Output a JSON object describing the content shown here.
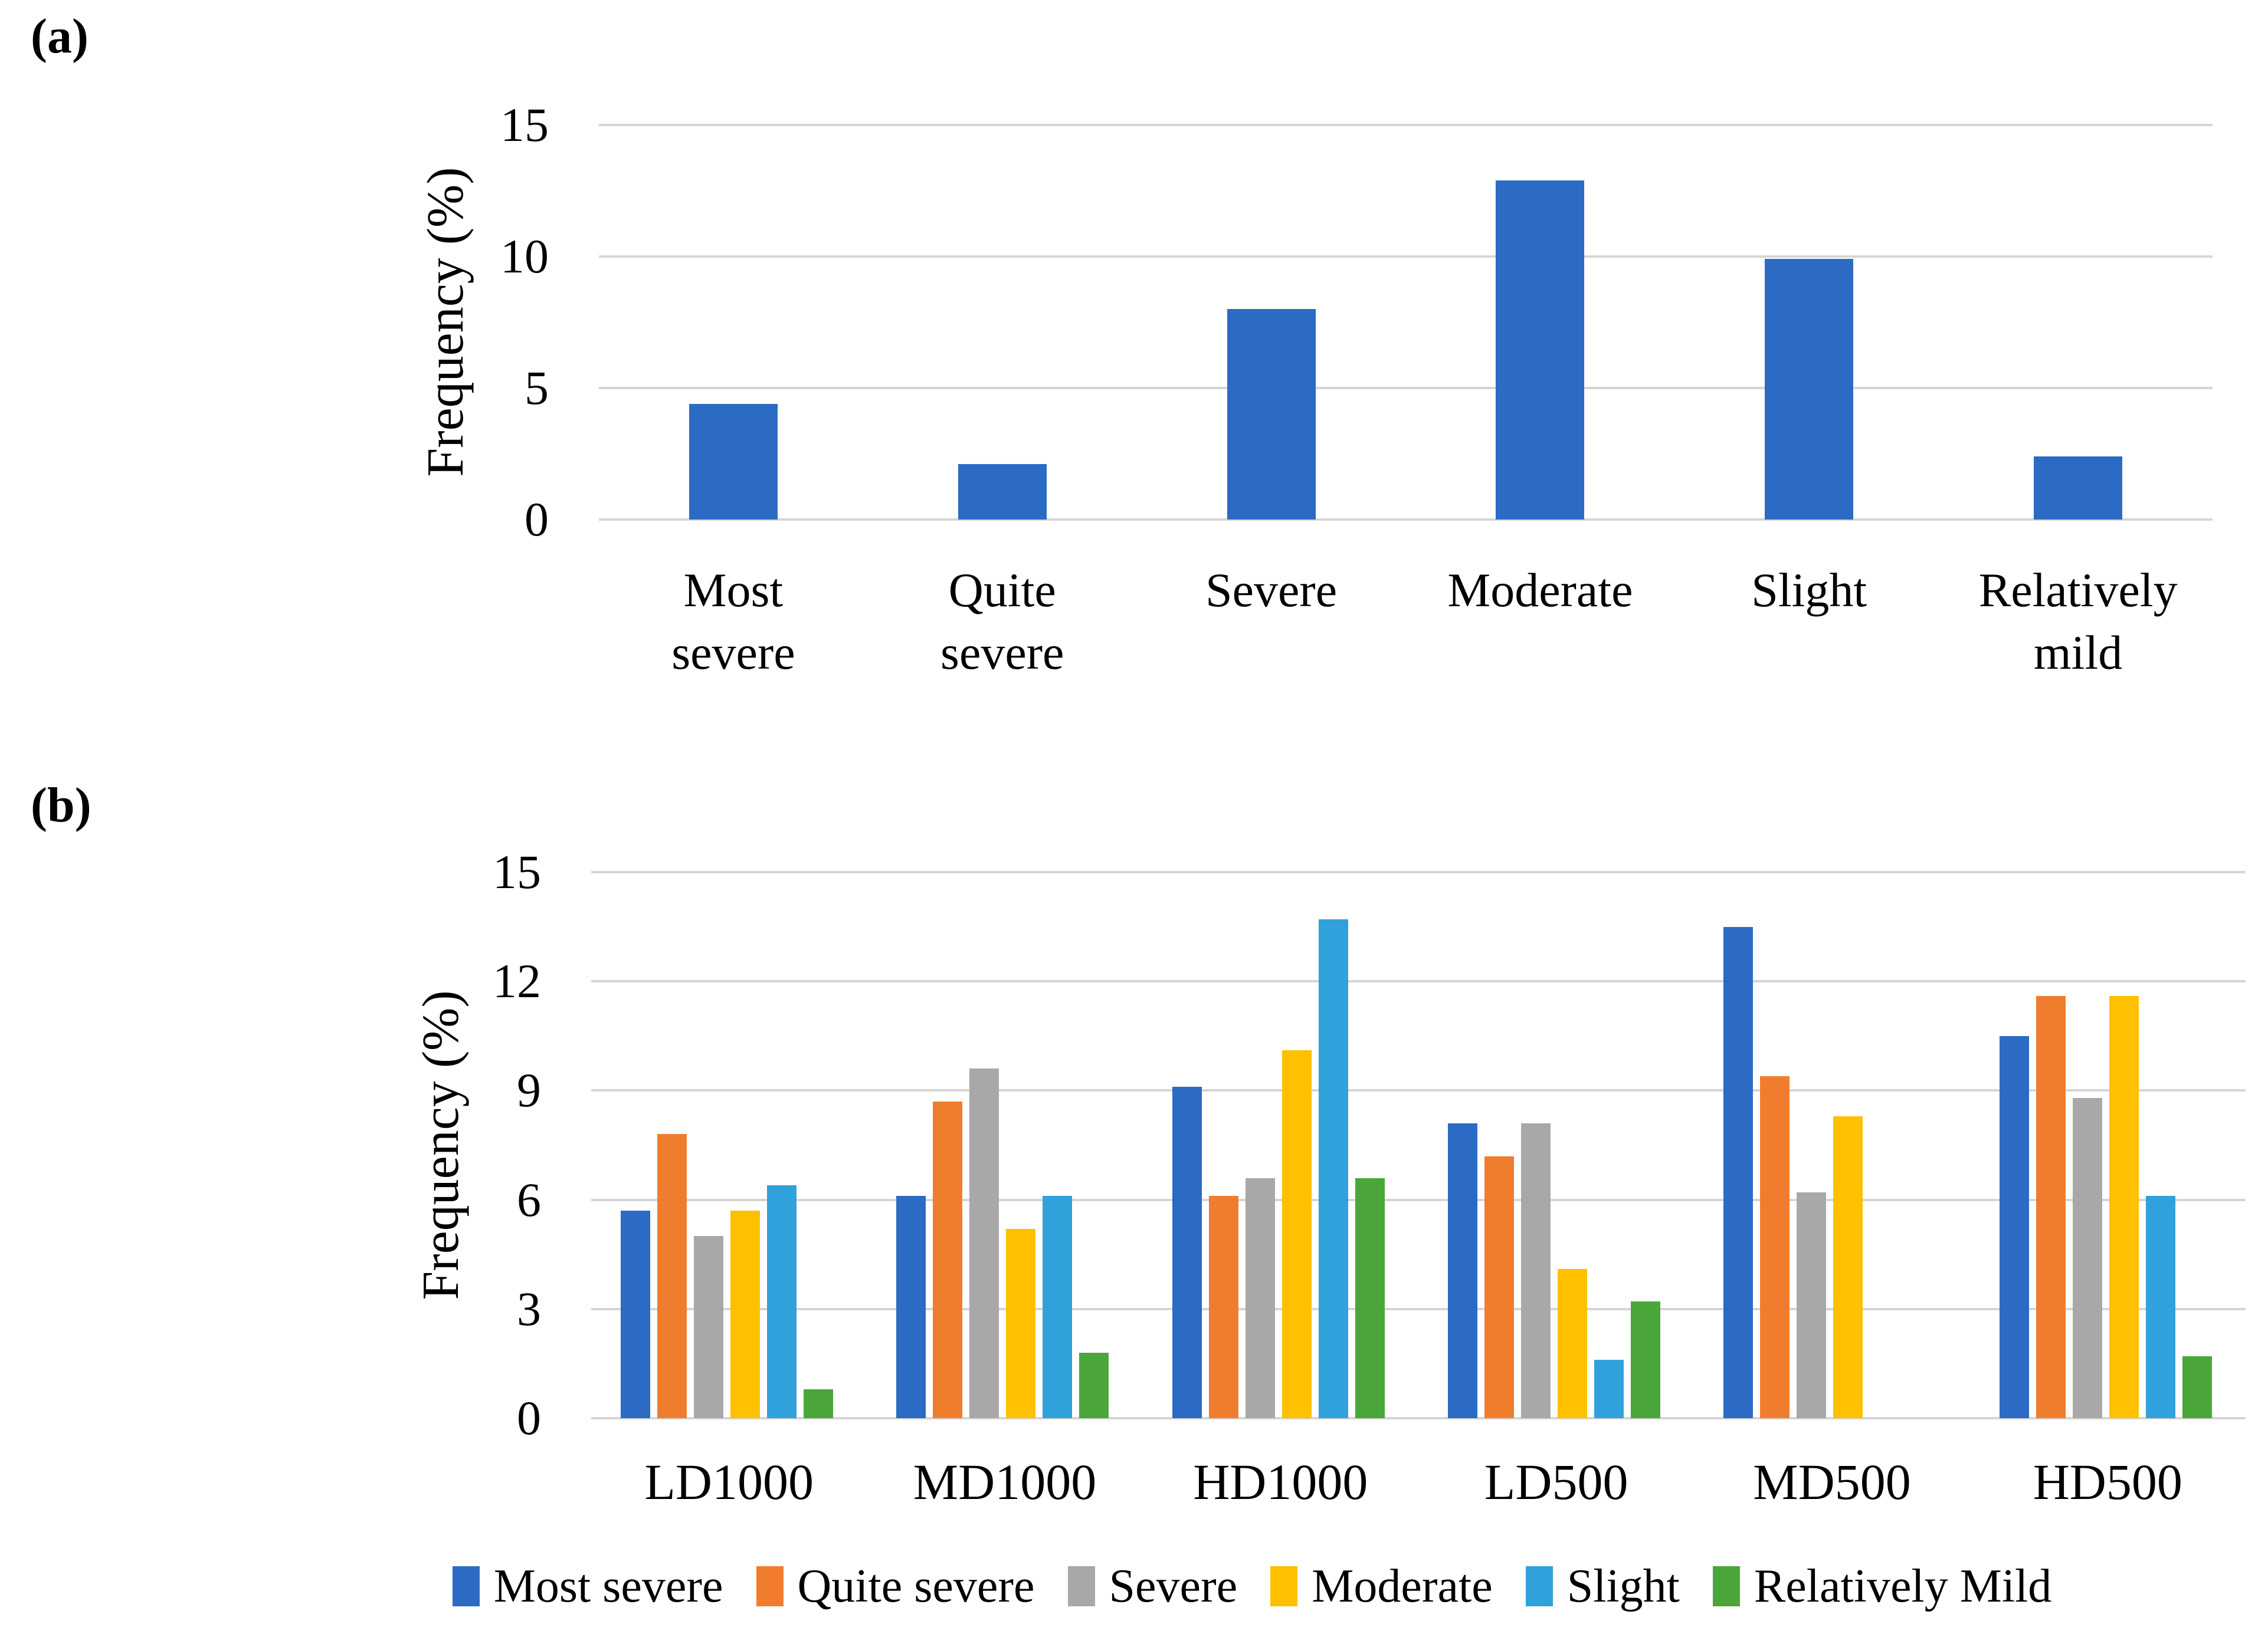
{
  "panels": {
    "a_label": "(a)",
    "b_label": "(b)"
  },
  "grid_color": "#D5D5D5",
  "text_color": "#000000",
  "chart_data": [
    {
      "id": "a",
      "type": "bar",
      "title": "",
      "xlabel": "",
      "ylabel": "Frequency (%)",
      "categories": [
        "Most\nsevere",
        "Quite\nsevere",
        "Severe",
        "Moderate",
        "Slight",
        "Relatively\nmild"
      ],
      "values": [
        4.4,
        2.1,
        8.0,
        12.9,
        9.9,
        2.4
      ],
      "bar_color": "#2B6BC4",
      "ylim": [
        0,
        15
      ],
      "yticks": [
        0,
        5,
        10,
        15
      ],
      "grid": true,
      "legend_position": "none"
    },
    {
      "id": "b",
      "type": "bar",
      "title": "",
      "xlabel": "",
      "ylabel": "Frequency (%)",
      "categories": [
        "LD1000",
        "MD1000",
        "HD1000",
        "LD500",
        "MD500",
        "HD500"
      ],
      "series": [
        {
          "name": "Most severe",
          "color": "#2B6BC4",
          "values": [
            5.7,
            6.1,
            9.1,
            8.1,
            13.5,
            10.5
          ]
        },
        {
          "name": "Quite severe",
          "color": "#F07D2E",
          "values": [
            7.8,
            8.7,
            6.1,
            7.2,
            9.4,
            11.6
          ]
        },
        {
          "name": "Severe",
          "color": "#A8A8A8",
          "values": [
            5.0,
            9.6,
            6.6,
            8.1,
            6.2,
            8.8
          ]
        },
        {
          "name": "Moderate",
          "color": "#FFC000",
          "values": [
            5.7,
            5.2,
            10.1,
            4.1,
            8.3,
            11.6
          ]
        },
        {
          "name": "Slight",
          "color": "#31A1DB",
          "values": [
            6.4,
            6.1,
            13.7,
            1.6,
            null,
            6.1
          ]
        },
        {
          "name": "Relatively Mild",
          "color": "#4BA63A",
          "values": [
            0.8,
            1.8,
            6.6,
            3.2,
            null,
            1.7
          ]
        }
      ],
      "ylim": [
        0,
        15
      ],
      "yticks": [
        0,
        3,
        6,
        9,
        12,
        15
      ],
      "grid": true,
      "legend_position": "bottom"
    }
  ]
}
